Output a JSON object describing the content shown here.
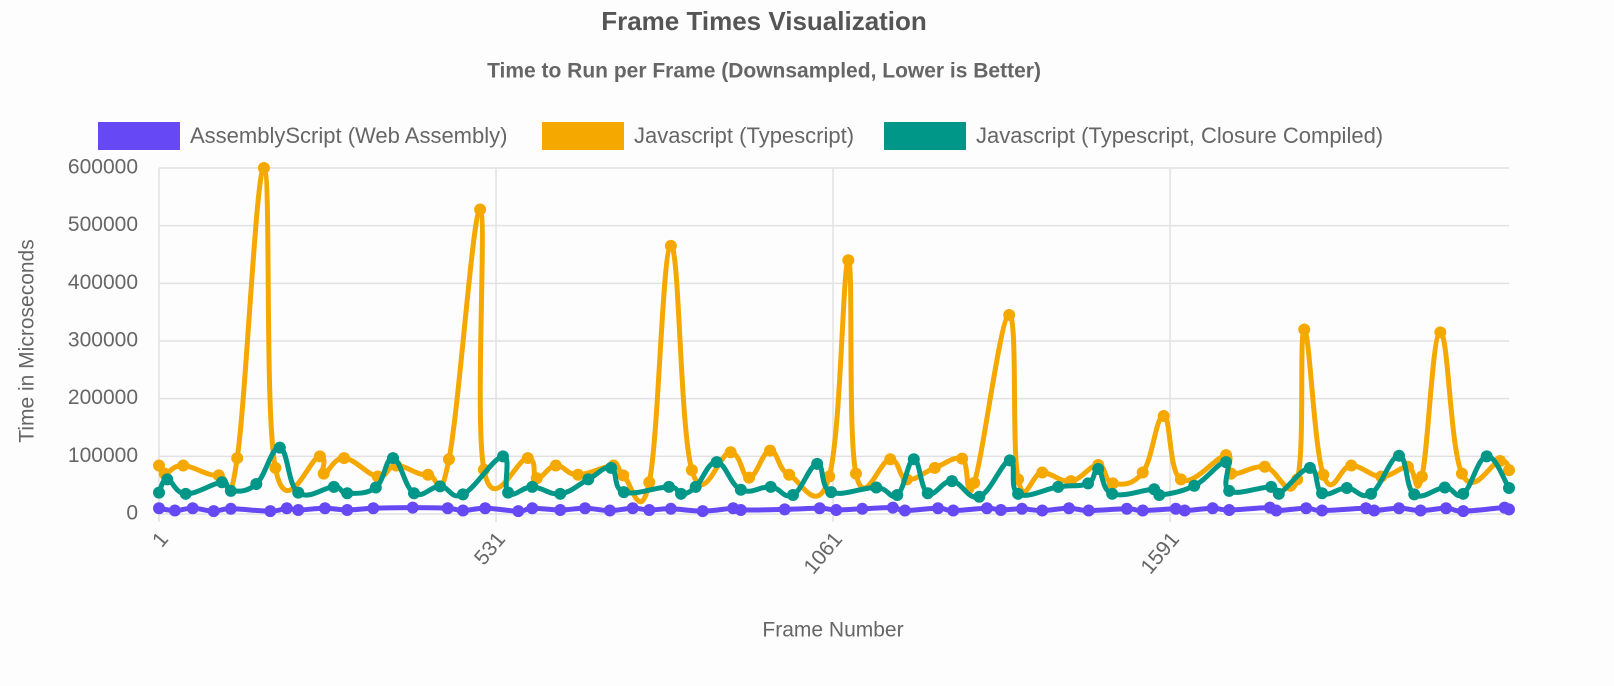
{
  "chart_data": {
    "type": "line",
    "title": "Frame Times Visualization",
    "subtitle": "Time to Run per Frame (Downsampled, Lower is Better)",
    "x_label": "Frame Number",
    "y_label": "Time in Microseconds",
    "xlim": [
      1,
      2124
    ],
    "xticks": [
      1,
      531,
      1061,
      1591
    ],
    "ylim": [
      0,
      600000
    ],
    "yticks": [
      0,
      100000,
      200000,
      300000,
      400000,
      500000,
      600000
    ],
    "grid": true,
    "legend": "top",
    "series": [
      {
        "name": "AssemblyScript (Web Assembly)",
        "color": "#6748f5",
        "x": [
          1,
          26,
          54,
          87,
          114,
          176,
          202,
          220,
          262,
          297,
          338,
          400,
          455,
          479,
          514,
          566,
          588,
          632,
          671,
          710,
          746,
          772,
          806,
          856,
          904,
          916,
          985,
          1040,
          1066,
          1107,
          1155,
          1174,
          1226,
          1250,
          1303,
          1325,
          1358,
          1390,
          1432,
          1463,
          1523,
          1548,
          1600,
          1614,
          1658,
          1684,
          1748,
          1758,
          1805,
          1830,
          1899,
          1912,
          1951,
          1985,
          2025,
          2052,
          2117,
          2124
        ],
        "values": [
          10000,
          6000,
          10000,
          5000,
          9000,
          5000,
          10000,
          7000,
          10000,
          7000,
          10000,
          11000,
          10000,
          6000,
          10000,
          5000,
          10000,
          7000,
          10000,
          6000,
          10000,
          7000,
          9000,
          5000,
          10000,
          7000,
          8000,
          10000,
          7000,
          9000,
          11000,
          6000,
          10000,
          6000,
          10000,
          7000,
          9000,
          6000,
          10000,
          6000,
          9000,
          6000,
          9000,
          6000,
          10000,
          7000,
          11000,
          6000,
          10000,
          6000,
          10000,
          6000,
          10000,
          6000,
          10000,
          5000,
          11000,
          8000
        ]
      },
      {
        "name": "Javascript (Typescript)",
        "color": "#f5a800",
        "x": [
          1,
          10,
          39,
          95,
          124,
          166,
          184,
          254,
          260,
          292,
          345,
          374,
          424,
          457,
          506,
          512,
          581,
          595,
          625,
          660,
          716,
          731,
          772,
          806,
          839,
          900,
          929,
          962,
          992,
          1055,
          1085,
          1097,
          1151,
          1177,
          1221,
          1264,
          1283,
          1338,
          1352,
          1390,
          1435,
          1478,
          1501,
          1548,
          1581,
          1608,
          1679,
          1687,
          1740,
          1791,
          1802,
          1832,
          1876,
          1923,
          1965,
          1987,
          2016,
          2050,
          2110,
          2124
        ],
        "values": [
          84000,
          70000,
          84000,
          67000,
          97000,
          600000,
          80000,
          100000,
          70000,
          97000,
          65000,
          84000,
          68000,
          95000,
          528000,
          77000,
          97000,
          62000,
          84000,
          68000,
          84000,
          67000,
          55000,
          465000,
          76000,
          107000,
          63000,
          110000,
          68000,
          65000,
          440000,
          70000,
          95000,
          60000,
          80000,
          96000,
          54000,
          345000,
          60000,
          72000,
          57000,
          85000,
          53000,
          72000,
          170000,
          60000,
          102000,
          70000,
          82000,
          60000,
          320000,
          68000,
          84000,
          65000,
          82000,
          65000,
          315000,
          70000,
          92000,
          76000
        ]
      },
      {
        "name": "Javascript (Typescript, Closure Compiled)",
        "color": "#009688",
        "x": [
          1,
          14,
          43,
          100,
          114,
          154,
          191,
          220,
          276,
          297,
          342,
          369,
          402,
          443,
          479,
          542,
          550,
          588,
          632,
          676,
          712,
          732,
          803,
          822,
          845,
          878,
          916,
          963,
          998,
          1036,
          1058,
          1129,
          1162,
          1188,
          1210,
          1248,
          1291,
          1339,
          1352,
          1415,
          1462,
          1478,
          1500,
          1566,
          1574,
          1629,
          1679,
          1684,
          1750,
          1762,
          1811,
          1830,
          1869,
          1907,
          1951,
          1975,
          2023,
          2052,
          2089,
          2124
        ],
        "values": [
          37000,
          60000,
          35000,
          55000,
          40000,
          52000,
          115000,
          37000,
          47000,
          36000,
          46000,
          97000,
          36000,
          48000,
          34000,
          100000,
          37000,
          47000,
          35000,
          60000,
          80000,
          38000,
          47000,
          35000,
          47000,
          90000,
          42000,
          47000,
          33000,
          87000,
          38000,
          46000,
          33000,
          95000,
          36000,
          57000,
          30000,
          93000,
          35000,
          47000,
          53000,
          78000,
          35000,
          43000,
          33000,
          49000,
          90000,
          40000,
          47000,
          35000,
          80000,
          36000,
          45000,
          35000,
          101000,
          34000,
          46000,
          35000,
          100000,
          45000
        ]
      }
    ]
  }
}
